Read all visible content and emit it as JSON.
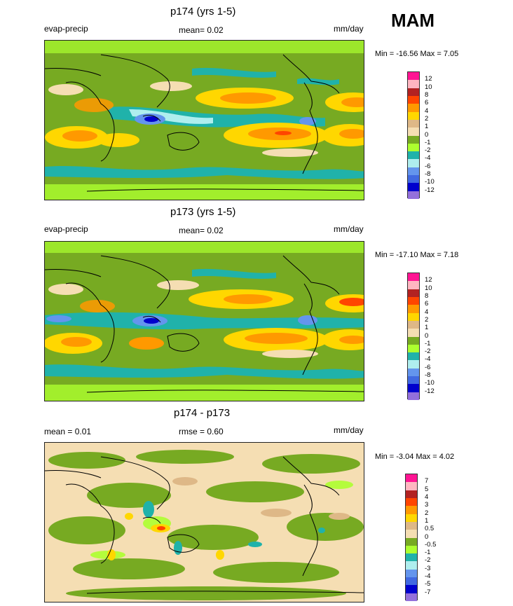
{
  "season": "MAM",
  "panels": [
    {
      "title": "p174 (yrs 1-5)",
      "left_label": "evap-precip",
      "mean_label": "mean=  0.02",
      "units": "mm/day",
      "minmax": "Min = -16.56 Max =   7.05",
      "levels": [
        "12",
        "10",
        "8",
        "6",
        "4",
        "2",
        "1",
        "0",
        "-1",
        "-2",
        "-4",
        "-6",
        "-8",
        "-10",
        "-12"
      ],
      "colors": [
        "#ff1493",
        "#ffb6c1",
        "#b22222",
        "#ff4500",
        "#ff9900",
        "#ffd700",
        "#deb887",
        "#f5deb3",
        "#77aa22",
        "#adff2f",
        "#20b2aa",
        "#afeeee",
        "#6495ed",
        "#4169e1",
        "#0000cd",
        "#9370db"
      ]
    },
    {
      "title": "p173 (yrs 1-5)",
      "left_label": "evap-precip",
      "mean_label": "mean=  0.02",
      "units": "mm/day",
      "minmax": "Min = -17.10 Max =   7.18",
      "levels": [
        "12",
        "10",
        "8",
        "6",
        "4",
        "2",
        "1",
        "0",
        "-1",
        "-2",
        "-4",
        "-6",
        "-8",
        "-10",
        "-12"
      ],
      "colors": [
        "#ff1493",
        "#ffb6c1",
        "#b22222",
        "#ff4500",
        "#ff9900",
        "#ffd700",
        "#deb887",
        "#f5deb3",
        "#77aa22",
        "#adff2f",
        "#20b2aa",
        "#afeeee",
        "#6495ed",
        "#4169e1",
        "#0000cd",
        "#9370db"
      ]
    },
    {
      "title": "p174 - p173",
      "left_label": "mean =   0.01",
      "mean_label": "rmse =  0.60",
      "units": "mm/day",
      "minmax": "Min =  -3.04 Max =   4.02",
      "levels": [
        "7",
        "5",
        "4",
        "3",
        "2",
        "1",
        "0.5",
        "0",
        "-0.5",
        "-1",
        "-2",
        "-3",
        "-4",
        "-5",
        "-7"
      ],
      "colors": [
        "#ff1493",
        "#ffb6c1",
        "#b22222",
        "#ff4500",
        "#ff9900",
        "#ffd700",
        "#deb887",
        "#f5deb3",
        "#77aa22",
        "#adff2f",
        "#20b2aa",
        "#afeeee",
        "#6495ed",
        "#4169e1",
        "#0000cd",
        "#9370db"
      ]
    }
  ]
}
